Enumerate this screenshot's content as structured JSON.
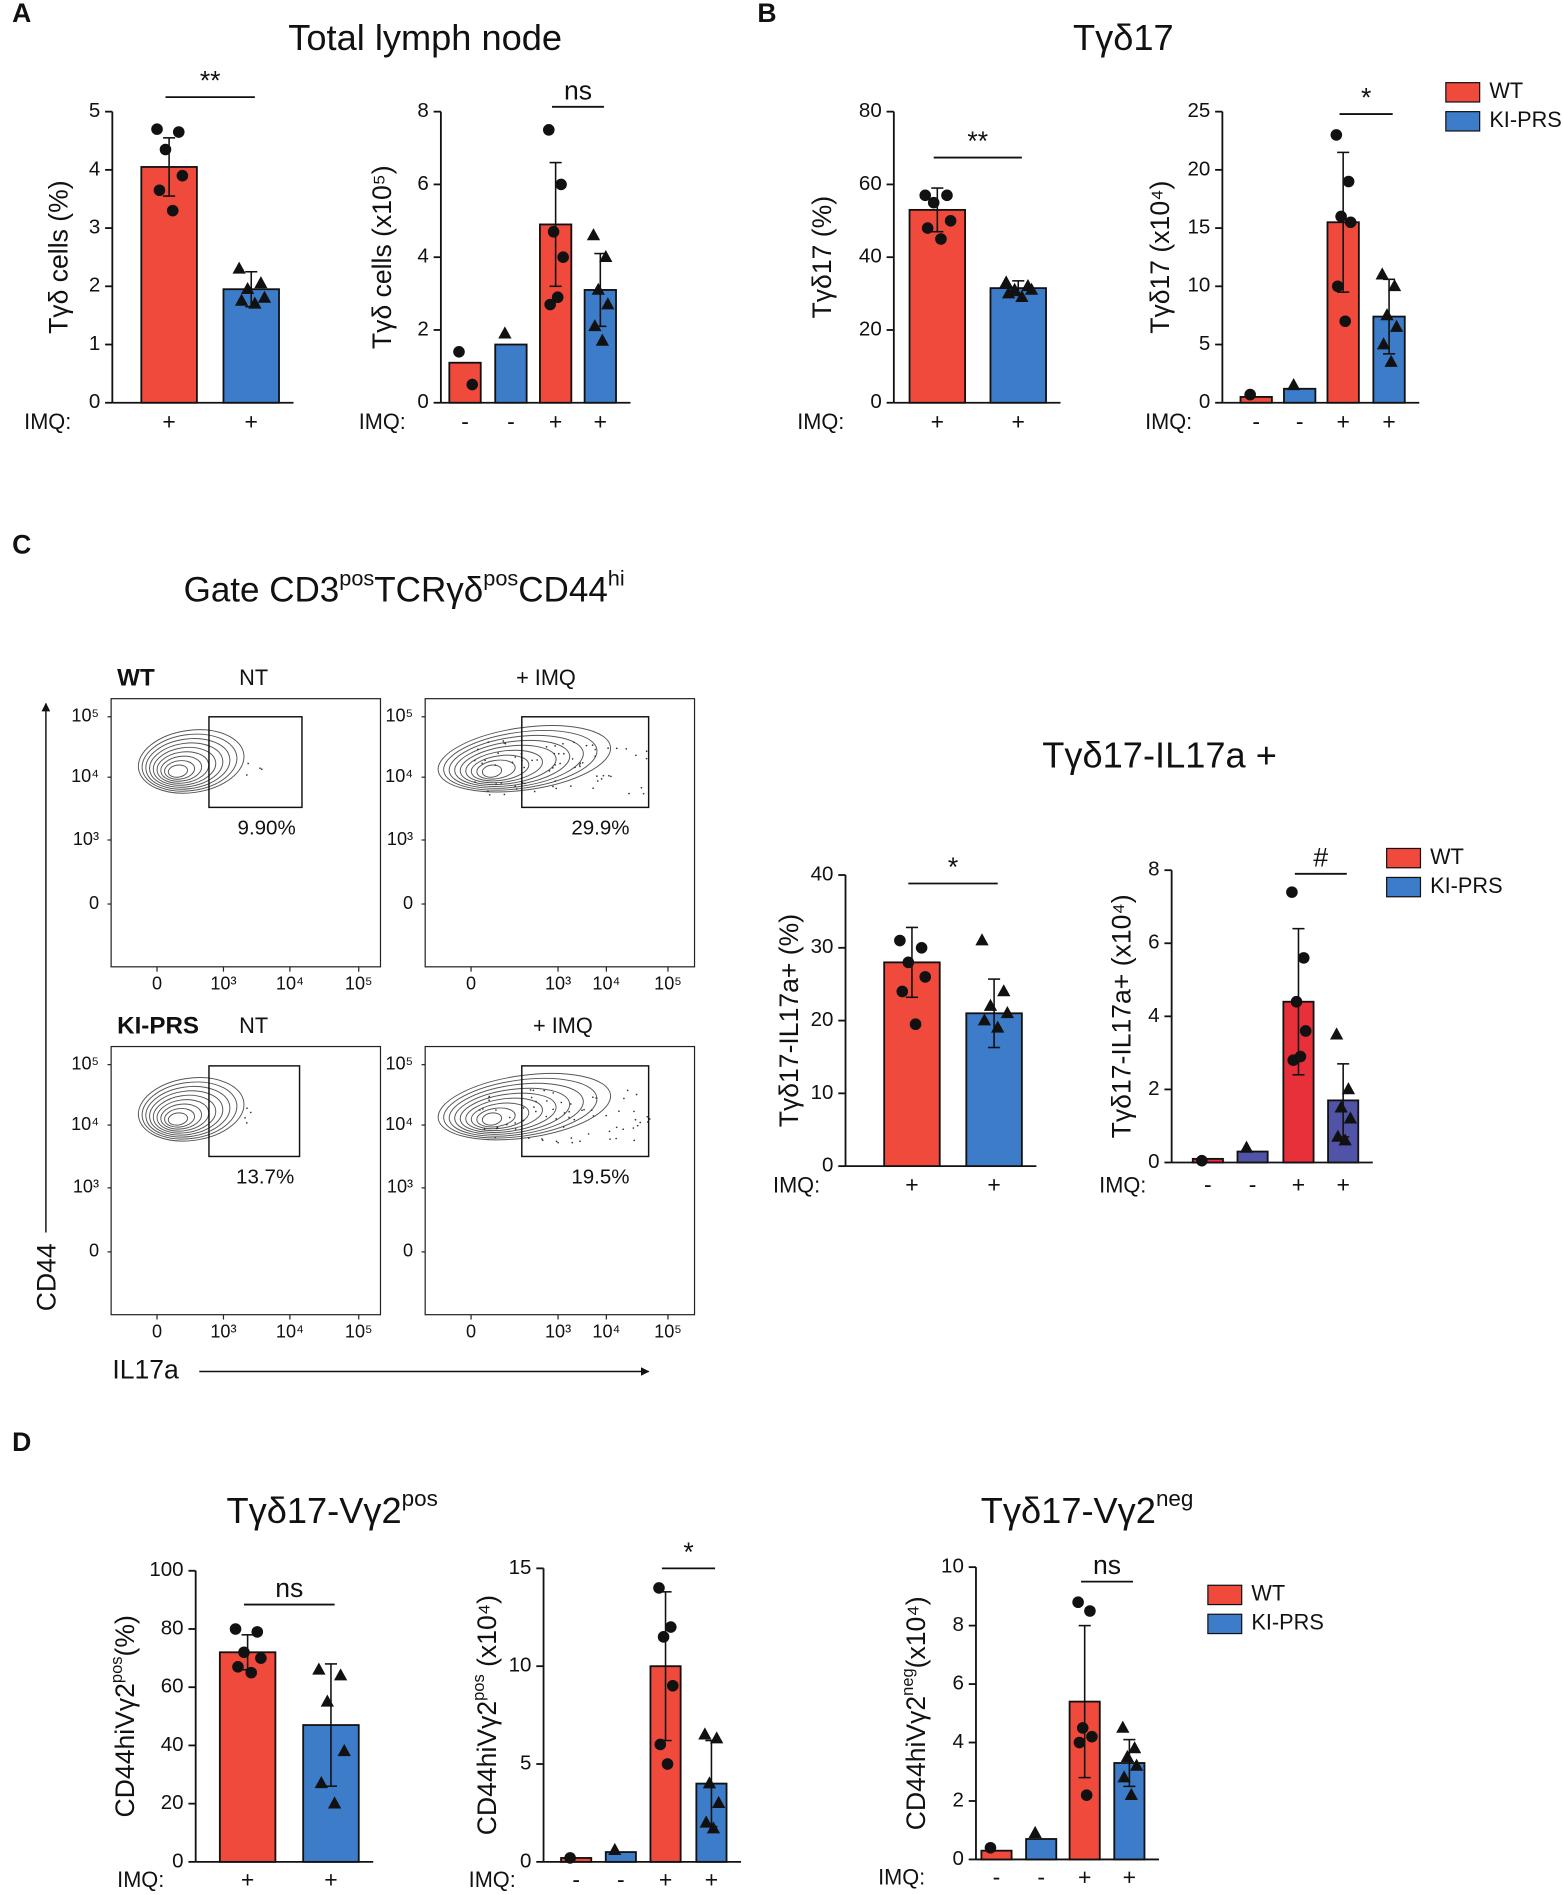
{
  "chart_data": [
    {
      "type": "bar",
      "panel": "A",
      "title": "Total lymph node",
      "y_label": "Tγδ cells (%)",
      "category_label": "IMQ:",
      "categories": [
        "+",
        "+"
      ],
      "values": [
        4.05,
        1.95
      ],
      "errors": [
        0.5,
        0.3
      ],
      "colors": [
        "#ef4a3c",
        "#3d7cc9"
      ],
      "points": [
        [
          4.7,
          4.65,
          4.35,
          3.9,
          3.65,
          3.3
        ],
        [
          2.3,
          2.05,
          1.95,
          1.8,
          1.75,
          1.7
        ]
      ],
      "significance": "**",
      "ylim": [
        0,
        5
      ],
      "yticks": [
        0,
        1,
        2,
        3,
        4,
        5
      ]
    },
    {
      "type": "bar",
      "y_label": "Tγδ cells (x10⁵)",
      "category_label": "IMQ:",
      "categories": [
        "-",
        "-",
        "+",
        "+"
      ],
      "values": [
        1.1,
        1.6,
        4.9,
        3.1
      ],
      "errors": [
        null,
        null,
        1.7,
        1.0
      ],
      "colors": [
        "#ef4a3c",
        "#3d7cc9",
        "#ef4a3c",
        "#3d7cc9"
      ],
      "points": [
        [
          1.4,
          0.5
        ],
        [
          1.9
        ],
        [
          7.5,
          6.0,
          4.7,
          4.0,
          2.7,
          2.9
        ],
        [
          4.6,
          4.0,
          3.1,
          2.7,
          2.1,
          1.7
        ]
      ],
      "significance": "ns",
      "ylim": [
        0,
        8
      ],
      "yticks": [
        0,
        2,
        4,
        6,
        8
      ]
    },
    {
      "type": "bar",
      "panel": "B",
      "title": "Tγδ17",
      "y_label": "Tγδ17 (%)",
      "category_label": "IMQ:",
      "categories": [
        "+",
        "+"
      ],
      "values": [
        53,
        31.5
      ],
      "errors": [
        6,
        2
      ],
      "colors": [
        "#ef4a3c",
        "#3d7cc9"
      ],
      "points": [
        [
          57,
          57,
          55,
          50,
          48,
          45
        ],
        [
          33,
          32,
          31,
          31,
          30,
          29
        ]
      ],
      "significance": "**",
      "ylim": [
        0,
        80
      ],
      "yticks": [
        0,
        20,
        40,
        60,
        80
      ]
    },
    {
      "type": "bar",
      "y_label": "Tγδ17 (x10⁴)",
      "category_label": "IMQ:",
      "categories": [
        "-",
        "-",
        "+",
        "+"
      ],
      "values": [
        0.5,
        1.2,
        15.5,
        7.4
      ],
      "errors": [
        null,
        null,
        6,
        3.2
      ],
      "colors": [
        "#ef4a3c",
        "#3d7cc9",
        "#ef4a3c",
        "#3d7cc9"
      ],
      "points": [
        [
          0.7
        ],
        [
          1.5
        ],
        [
          23,
          19,
          16,
          15.5,
          10,
          7
        ],
        [
          11,
          10,
          7.5,
          6.5,
          5,
          3.5
        ]
      ],
      "significance": "*",
      "ylim": [
        0,
        25
      ],
      "yticks": [
        0,
        5,
        10,
        15,
        20,
        25
      ],
      "legend": [
        {
          "name": "WT",
          "color": "#ef4a3c"
        },
        {
          "name": "KI-PRS",
          "color": "#3d7cc9"
        }
      ]
    },
    {
      "type": "bar",
      "title": "Tγδ17-IL17a +",
      "y_label": "Tγδ17-IL17a+ (%)",
      "category_label": "IMQ:",
      "categories": [
        "+",
        "+"
      ],
      "values": [
        28,
        21
      ],
      "errors": [
        4.8,
        4.7
      ],
      "colors": [
        "#ef4a3c",
        "#3d7cc9"
      ],
      "points": [
        [
          31,
          30,
          28,
          26,
          24,
          19.5
        ],
        [
          31,
          24,
          22,
          21,
          20,
          19
        ]
      ],
      "significance": "*",
      "ylim": [
        0,
        40
      ],
      "yticks": [
        0,
        10,
        20,
        30,
        40
      ]
    },
    {
      "type": "bar",
      "y_label": "Tγδ17-IL17a+ (x10⁴)",
      "category_label": "IMQ:",
      "categories": [
        "-",
        "-",
        "+",
        "+"
      ],
      "values": [
        0.1,
        0.3,
        4.4,
        1.7
      ],
      "errors": [
        null,
        null,
        2,
        1
      ],
      "colors": [
        "#e8303a",
        "#5154a6",
        "#e8303a",
        "#5154a6"
      ],
      "points": [
        [
          0.05
        ],
        [
          0.4
        ],
        [
          7.4,
          5.6,
          4.4,
          3.6,
          2.8,
          2.9
        ],
        [
          3.5,
          2.0,
          1.5,
          1.2,
          0.7,
          0.6
        ]
      ],
      "significance": "#",
      "ylim": [
        0,
        8
      ],
      "yticks": [
        0,
        2,
        4,
        6,
        8
      ],
      "legend": [
        {
          "name": "WT",
          "color": "#ef4a3c"
        },
        {
          "name": "KI-PRS",
          "color": "#3d7cc9"
        }
      ]
    },
    {
      "type": "bar",
      "panel": "D",
      "title": [
        "Tγδ17-Vγ2",
        "pos"
      ],
      "y_label": [
        "CD44hiVγ2",
        "pos",
        "(%)"
      ],
      "category_label": "IMQ:",
      "categories": [
        "+",
        "+"
      ],
      "values": [
        72,
        47
      ],
      "errors": [
        6,
        21
      ],
      "colors": [
        "#ef4a3c",
        "#3d7cc9"
      ],
      "points": [
        [
          80,
          79,
          72,
          70,
          67,
          65
        ],
        [
          66,
          64,
          55,
          38,
          27,
          20
        ]
      ],
      "significance": "ns",
      "ylim": [
        0,
        100
      ],
      "yticks": [
        0,
        20,
        40,
        60,
        80,
        100
      ]
    },
    {
      "type": "bar",
      "y_label": [
        "CD44hiVγ2",
        "pos",
        " (x10⁴)"
      ],
      "category_label": "IMQ:",
      "categories": [
        "-",
        "-",
        "+",
        "+"
      ],
      "values": [
        0.2,
        0.5,
        10,
        4
      ],
      "errors": [
        null,
        null,
        3.8,
        2.2
      ],
      "colors": [
        "#ef4a3c",
        "#3d7cc9",
        "#ef4a3c",
        "#3d7cc9"
      ],
      "points": [
        [
          0.2
        ],
        [
          0.6
        ],
        [
          14,
          12,
          11.5,
          9,
          6,
          5
        ],
        [
          6.5,
          6.3,
          4,
          3,
          2,
          1.7
        ]
      ],
      "significance": "*",
      "ylim": [
        0,
        15
      ],
      "yticks": [
        0,
        5,
        10,
        15
      ]
    },
    {
      "type": "bar",
      "title": [
        "Tγδ17-Vγ2",
        "neg"
      ],
      "y_label": [
        "CD44hiVγ2",
        "neg",
        "(x10⁴)"
      ],
      "category_label": "IMQ:",
      "categories": [
        "-",
        "-",
        "+",
        "+"
      ],
      "values": [
        0.3,
        0.7,
        5.4,
        3.3
      ],
      "errors": [
        null,
        null,
        2.6,
        0.8
      ],
      "colors": [
        "#ef4a3c",
        "#3d7cc9",
        "#ef4a3c",
        "#3d7cc9"
      ],
      "points": [
        [
          0.4
        ],
        [
          0.9
        ],
        [
          8.8,
          8.5,
          4.5,
          4.2,
          4.0,
          2.2
        ],
        [
          4.5,
          3.8,
          3.5,
          3.2,
          2.8,
          2.2
        ]
      ],
      "significance": "ns",
      "ylim": [
        0,
        10
      ],
      "yticks": [
        0,
        2,
        4,
        6,
        8,
        10
      ],
      "legend": [
        {
          "name": "WT",
          "color": "#ef4a3c"
        },
        {
          "name": "KI-PRS",
          "color": "#3d7cc9"
        }
      ]
    }
  ],
  "flow": {
    "panel": "C",
    "gate_title": [
      "Gate CD3",
      "pos",
      "TCRγδ",
      "pos",
      "CD44",
      "hi"
    ],
    "rows": [
      {
        "genotype": "WT",
        "plots": [
          {
            "condition": "NT",
            "gate_percent": "9.90%"
          },
          {
            "condition": "+ IMQ",
            "gate_percent": "29.9%"
          }
        ]
      },
      {
        "genotype": "KI-PRS",
        "plots": [
          {
            "condition": "NT",
            "gate_percent": "13.7%"
          },
          {
            "condition": "+ IMQ",
            "gate_percent": "19.5%"
          }
        ]
      }
    ],
    "y_ticks": [
      "10⁵",
      "10⁴",
      "10³",
      "0"
    ],
    "x_ticks": [
      "0",
      "10³",
      "10⁴",
      "10⁵"
    ],
    "y_axis_label": "CD44",
    "x_axis_label": "IL17a"
  }
}
